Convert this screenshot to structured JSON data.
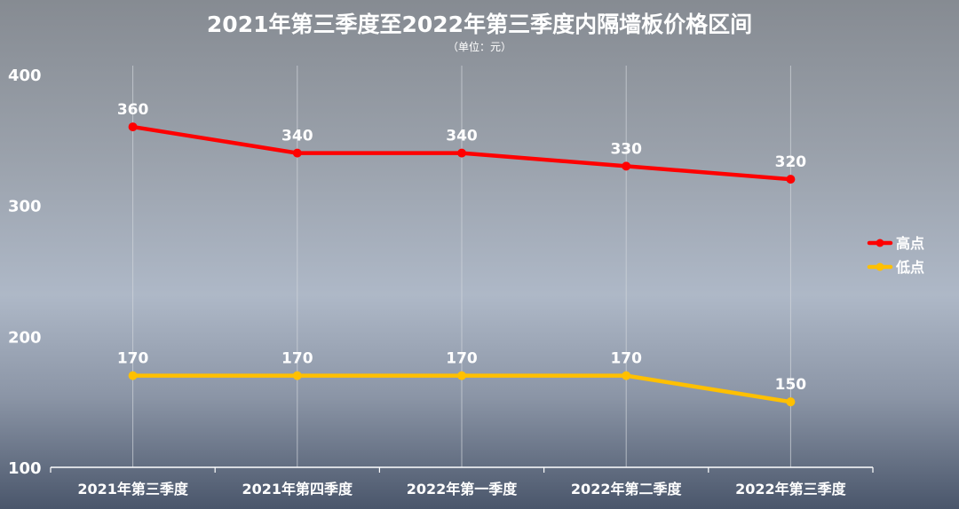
{
  "chart_data": {
    "type": "line",
    "title": "2021年第三季度至2022年第三季度内隔墙板价格区间",
    "subtitle": "（单位：元）",
    "categories": [
      "2021年第三季度",
      "2021年第四季度",
      "2022年第一季度",
      "2022年第二季度",
      "2022年第三季度"
    ],
    "series": [
      {
        "name": "高点",
        "values": [
          360,
          340,
          340,
          330,
          320
        ],
        "color": "#ff0000"
      },
      {
        "name": "低点",
        "values": [
          170,
          170,
          170,
          170,
          150
        ],
        "color": "#ffc000"
      }
    ],
    "ylim": [
      100,
      400
    ],
    "yticks": [
      100,
      200,
      300,
      400
    ],
    "grid": "vertical",
    "legend": "right",
    "data_labels": true
  }
}
